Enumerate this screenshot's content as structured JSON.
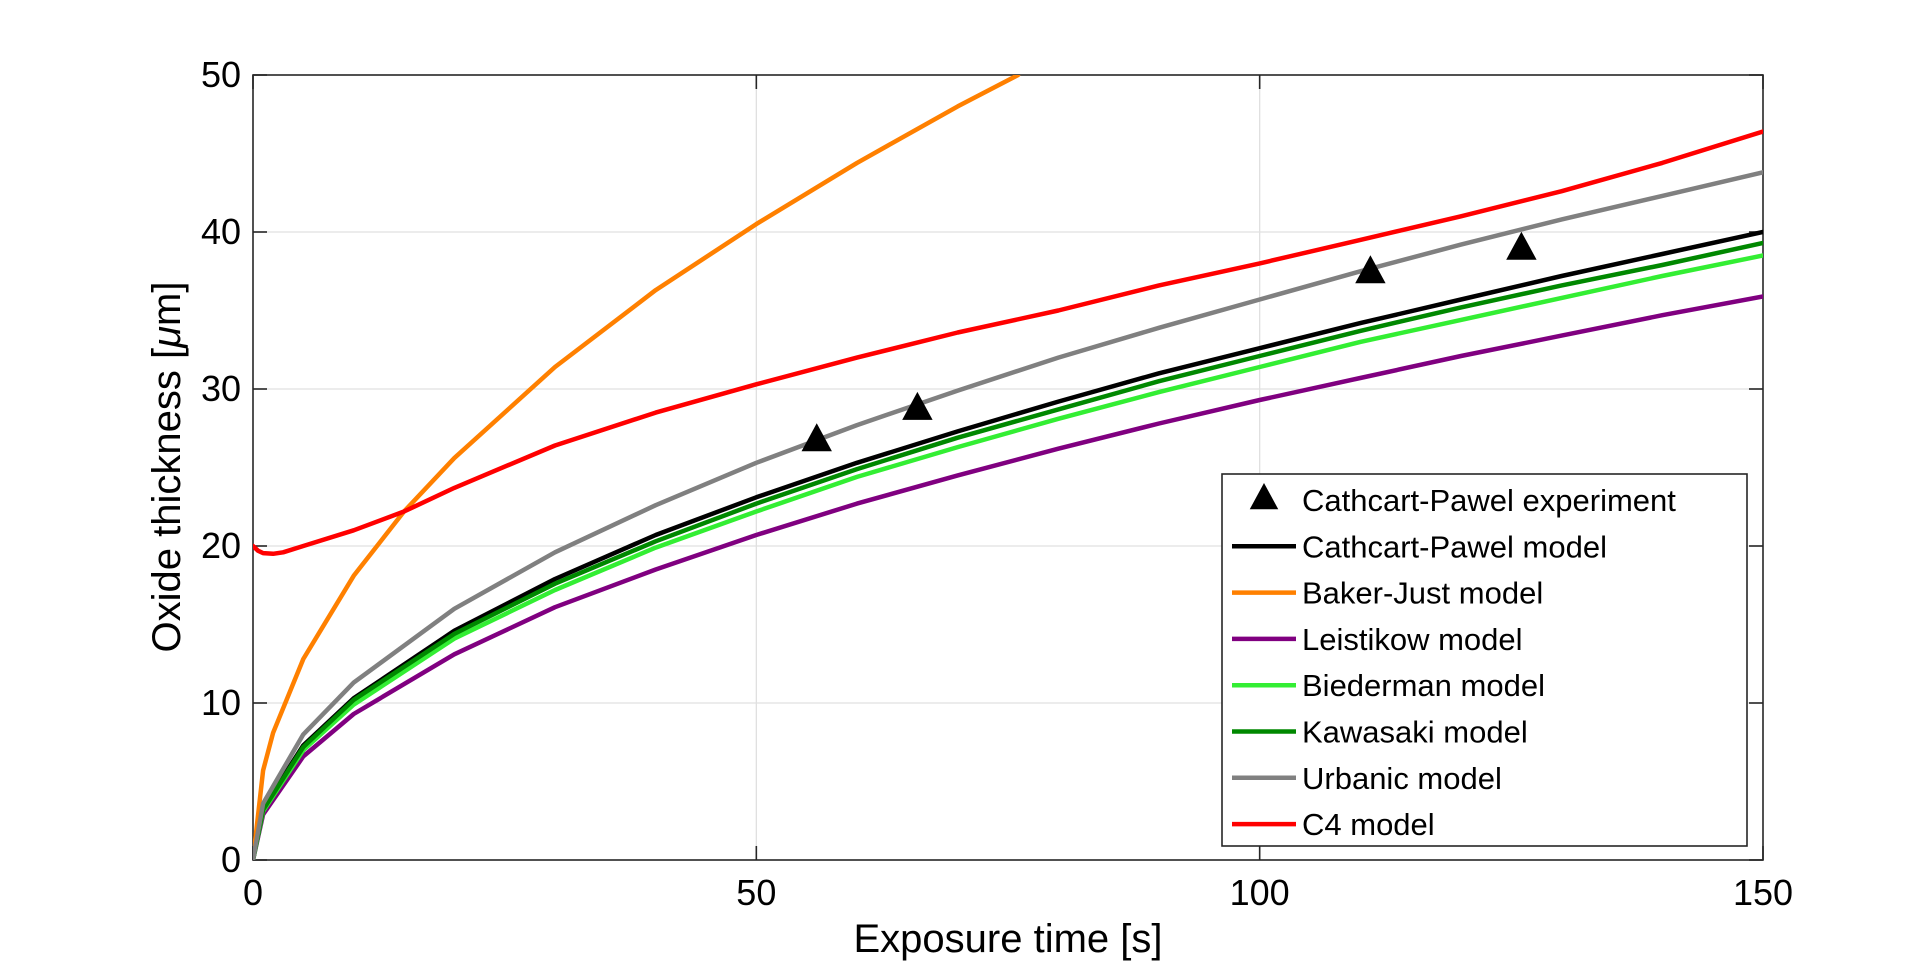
{
  "chart_data": {
    "type": "line",
    "xlabel": "Exposure time [s]",
    "ylabel_prefix": "Oxide thickness [",
    "ylabel_mu": "μ",
    "ylabel_suffix": "m]",
    "xlim": [
      0,
      150
    ],
    "ylim": [
      0,
      50
    ],
    "xticks": [
      0,
      50,
      100,
      150
    ],
    "yticks": [
      0,
      10,
      20,
      30,
      40,
      50
    ],
    "grid": true,
    "legend_placement": "lower-right",
    "experiment": {
      "name": "Cathcart-Pawel experiment",
      "color": "#000000",
      "marker": "triangle",
      "x": [
        56,
        66,
        111,
        126
      ],
      "y": [
        26.8,
        28.8,
        37.5,
        39.0
      ]
    },
    "series": [
      {
        "name": "Cathcart-Pawel model",
        "color": "#000000",
        "x": [
          0,
          1,
          5,
          10,
          20,
          30,
          40,
          50,
          60,
          70,
          80,
          90,
          100,
          110,
          120,
          130,
          140,
          150
        ],
        "y": [
          0,
          3.3,
          7.3,
          10.3,
          14.6,
          17.9,
          20.7,
          23.1,
          25.3,
          27.3,
          29.2,
          31.0,
          32.6,
          34.2,
          35.7,
          37.2,
          38.6,
          40.0
        ]
      },
      {
        "name": "Baker-Just model",
        "color": "#ff8000",
        "x": [
          0,
          1,
          2,
          5,
          10,
          15,
          20,
          30,
          40,
          50,
          60,
          70,
          76
        ],
        "y": [
          0,
          5.7,
          8.1,
          12.8,
          18.1,
          22.2,
          25.6,
          31.4,
          36.3,
          40.5,
          44.4,
          48.0,
          50.0
        ]
      },
      {
        "name": "Leistikow model",
        "color": "#800080",
        "x": [
          0,
          1,
          5,
          10,
          20,
          30,
          40,
          50,
          60,
          70,
          80,
          90,
          100,
          110,
          120,
          130,
          140,
          150
        ],
        "y": [
          0,
          2.9,
          6.6,
          9.3,
          13.1,
          16.1,
          18.5,
          20.7,
          22.7,
          24.5,
          26.2,
          27.8,
          29.3,
          30.7,
          32.1,
          33.4,
          34.7,
          35.9
        ]
      },
      {
        "name": "Biederman model",
        "color": "#33ee33",
        "x": [
          0,
          1,
          5,
          10,
          20,
          30,
          40,
          50,
          60,
          70,
          80,
          90,
          100,
          110,
          120,
          130,
          140,
          150
        ],
        "y": [
          0,
          3.1,
          7.0,
          9.9,
          14.1,
          17.2,
          19.9,
          22.2,
          24.4,
          26.3,
          28.1,
          29.8,
          31.4,
          33.0,
          34.4,
          35.8,
          37.2,
          38.5
        ]
      },
      {
        "name": "Kawasaki model",
        "color": "#008800",
        "x": [
          0,
          1,
          5,
          10,
          20,
          30,
          40,
          50,
          60,
          70,
          80,
          90,
          100,
          110,
          120,
          130,
          140,
          150
        ],
        "y": [
          0,
          3.2,
          7.2,
          10.2,
          14.4,
          17.6,
          20.3,
          22.7,
          24.9,
          26.9,
          28.7,
          30.5,
          32.1,
          33.7,
          35.2,
          36.6,
          37.9,
          39.3
        ]
      },
      {
        "name": "Urbanic model",
        "color": "#808080",
        "x": [
          0,
          1,
          5,
          10,
          20,
          30,
          40,
          50,
          60,
          70,
          80,
          90,
          100,
          110,
          120,
          130,
          140,
          150
        ],
        "y": [
          0,
          3.6,
          8.0,
          11.3,
          16.0,
          19.6,
          22.6,
          25.3,
          27.7,
          29.9,
          32.0,
          33.9,
          35.7,
          37.5,
          39.2,
          40.8,
          42.3,
          43.8
        ]
      },
      {
        "name": "C4 model",
        "color": "#ff0000",
        "x": [
          0,
          0.5,
          1,
          2,
          3,
          5,
          10,
          15,
          20,
          30,
          40,
          50,
          60,
          70,
          80,
          90,
          100,
          110,
          120,
          130,
          140,
          150
        ],
        "y": [
          20.0,
          19.7,
          19.55,
          19.5,
          19.6,
          20.0,
          21.0,
          22.2,
          23.7,
          26.4,
          28.5,
          30.3,
          32.0,
          33.6,
          35.0,
          36.6,
          38.0,
          39.5,
          41.0,
          42.6,
          44.4,
          46.4
        ]
      }
    ]
  }
}
